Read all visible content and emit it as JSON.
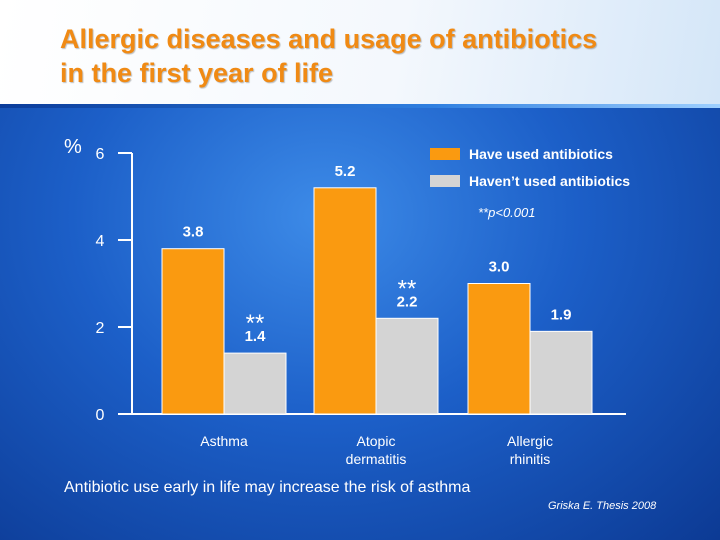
{
  "slide": {
    "title_line1": "Allergic diseases and usage of antibiotics",
    "title_line2": "in the first year of life",
    "percent_symbol": "%",
    "significance_note": "**p<0.001",
    "significance_mark": "**",
    "bottom_note": "Antibiotic use early in life may increase the risk of asthma",
    "source": "Griska E. Thesis 2008"
  },
  "chart_data": {
    "type": "bar",
    "title": "Allergic diseases and usage of antibiotics in the first year of life",
    "xlabel": "",
    "ylabel": "%",
    "ylim": [
      0,
      6
    ],
    "yticks": [
      "0",
      "2",
      "4",
      "6"
    ],
    "categories": [
      "Asthma",
      "Atopic dermatitis",
      "Allergic rhinitis"
    ],
    "category_lines": [
      [
        "Asthma"
      ],
      [
        "Atopic",
        "dermatitis"
      ],
      [
        "Allergic",
        "rhinitis"
      ]
    ],
    "series": [
      {
        "name": "Have used antibiotics",
        "values": [
          3.8,
          5.2,
          3.0
        ],
        "labels": [
          "3.8",
          "5.2",
          "3.0"
        ],
        "color": "#fa9a10"
      },
      {
        "name": "Haven’t used antibiotics",
        "values": [
          1.4,
          2.2,
          1.9
        ],
        "labels": [
          "1.4",
          "2.2",
          "1.9"
        ],
        "color": "#d4d4d4"
      }
    ],
    "significant": [
      true,
      true,
      false
    ],
    "legend_position": "top-right",
    "grid": false
  }
}
